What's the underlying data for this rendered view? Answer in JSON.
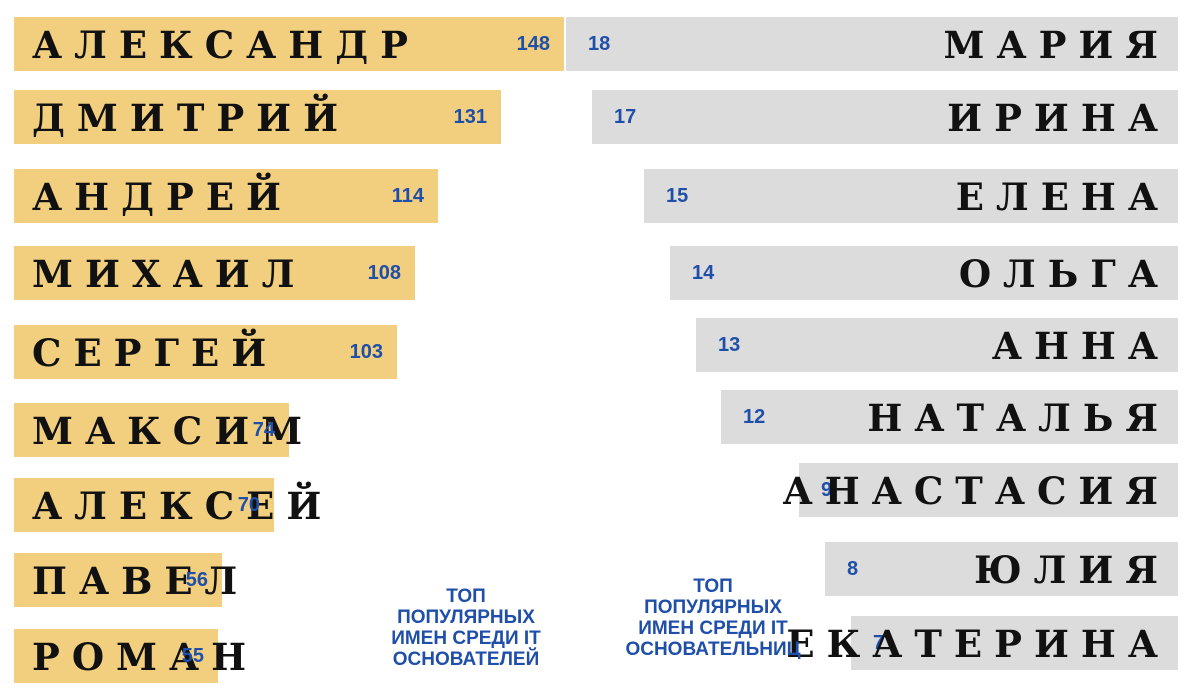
{
  "colors": {
    "male_bar": "#f1cf7e",
    "female_bar": "#dcdcdc",
    "value_text": "#1f4fa8",
    "name_text": "#111111"
  },
  "captions": {
    "male": [
      "ТОП",
      "ПОПУЛЯРНЫХ",
      "ИМЕН СРЕДИ IT",
      "ОСНОВАТЕЛЕЙ"
    ],
    "female": [
      "ТОП",
      "ПОПУЛЯРНЫХ",
      "ИМЕН СРЕДИ IT",
      "ОСНОВАТЕЛЬНИЦ"
    ]
  },
  "chart_data": [
    {
      "type": "bar",
      "orientation": "horizontal",
      "direction": "left-to-right",
      "categories": [
        "АЛЕКСАНДР",
        "ДМИТРИЙ",
        "АНДРЕЙ",
        "МИХАИЛ",
        "СЕРГЕЙ",
        "МАКСИМ",
        "АЛЕКСЕЙ",
        "ПАВЕЛ",
        "РОМАН"
      ],
      "values": [
        148,
        131,
        114,
        108,
        103,
        74,
        70,
        56,
        55
      ],
      "data_labels": true
    },
    {
      "type": "bar",
      "orientation": "horizontal",
      "direction": "right-to-left",
      "categories": [
        "МАРИЯ",
        "ИРИНА",
        "ЕЛЕНА",
        "ОЛЬГА",
        "АННА",
        "НАТАЛЬЯ",
        "АНАСТАСИЯ",
        "ЮЛИЯ",
        "ЕКАТЕРИНА"
      ],
      "values": [
        18,
        17,
        15,
        14,
        13,
        12,
        9,
        8,
        7
      ],
      "data_labels": true
    }
  ]
}
